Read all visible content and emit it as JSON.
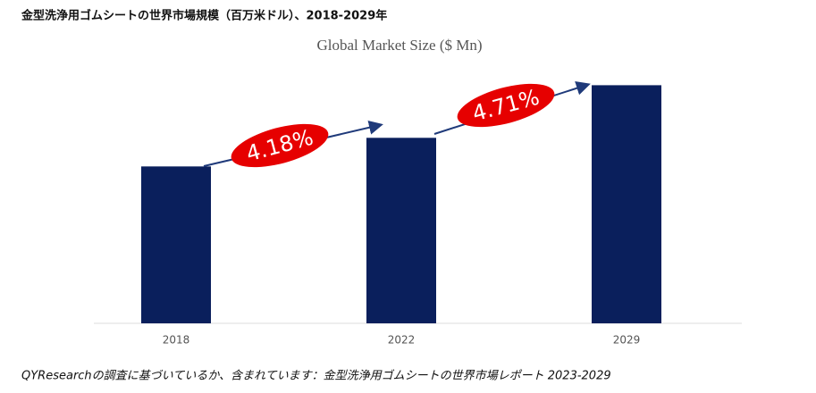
{
  "page_title": "金型洗浄用ゴムシートの世界市場規模（百万米ドル）、2018-2029年",
  "chart_data": {
    "type": "bar",
    "title": "Global Market Size ($ Mn)",
    "categories": [
      "2018",
      "2022",
      "2029"
    ],
    "values": [
      170,
      201,
      258
    ],
    "color": "#0a1f5c",
    "ylim": [
      0,
      300
    ],
    "annotations": [
      "4.18%",
      "4.71%"
    ],
    "annotation_color": "#e60000"
  },
  "footer": "QYResearchの調査に基づいているか、含まれています：金型洗浄用ゴムシートの世界市場レポート 2023-2029"
}
